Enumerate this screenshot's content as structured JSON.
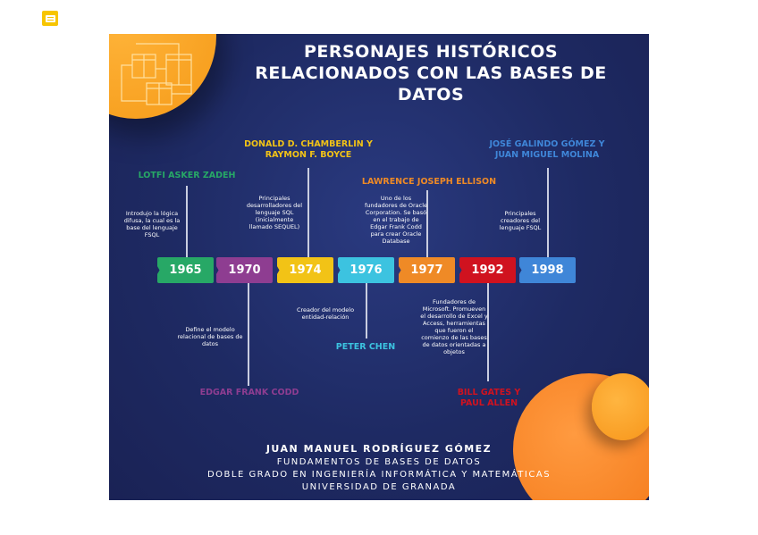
{
  "toolbar": {
    "comment_icon": "comment-icon",
    "color": "#f7c500"
  },
  "infographic": {
    "title": "PERSONAJES HISTÓRICOS RELACIONADOS CON LAS BASES DE DATOS",
    "events": [
      {
        "year": "1965",
        "name": "LOTFI ASKER ZADEH",
        "desc": "Introdujo la lógica difusa, la cual es la base del lenguaje FSQL",
        "color": "#27a866",
        "position": "top"
      },
      {
        "year": "1970",
        "name": "EDGAR FRANK CODD",
        "desc": "Define el modelo relacional de bases de datos",
        "color": "#8e3d91",
        "position": "bottom"
      },
      {
        "year": "1974",
        "name": "DONALD D. CHAMBERLIN Y RAYMON F. BOYCE",
        "desc": "Principales desarrolladores del lenguaje SQL (inicialmente llamado SEQUEL)",
        "color": "#f2c316",
        "position": "top"
      },
      {
        "year": "1976",
        "name": "PETER CHEN",
        "desc": "Creador del modelo entidad-relación",
        "color": "#3cc3e0",
        "position": "bottom"
      },
      {
        "year": "1977",
        "name": "LAWRENCE JOSEPH ELLISON",
        "desc": "Uno de los fundadores de Oracle Corporation. Se basó en el trabajo de Edgar Frank Codd para crear Oracle Database",
        "color": "#ef8a26",
        "position": "top"
      },
      {
        "year": "1992",
        "name": "BILL GATES Y PAUL ALLEN",
        "desc": "Fundadores de Microsoft. Promueven el desarrollo de Excel y Access, herramientas que fueron el comienzo de las bases de datos orientadas a objetos",
        "color": "#d0121f",
        "position": "bottom"
      },
      {
        "year": "1998",
        "name": "JOSÉ GALINDO GÓMEZ Y JUAN MIGUEL MOLINA",
        "desc": "Principales creadores del lenguaje FSQL",
        "color": "#3f86d8",
        "position": "top"
      }
    ],
    "footer": {
      "author": "JUAN MANUEL RODRÍGUEZ GÓMEZ",
      "course": "FUNDAMENTOS DE BASES DE DATOS",
      "degree": "DOBLE GRADO EN INGENIERÍA INFORMÁTICA Y MATEMÁTICAS",
      "university": "UNIVERSIDAD DE GRANADA"
    }
  }
}
